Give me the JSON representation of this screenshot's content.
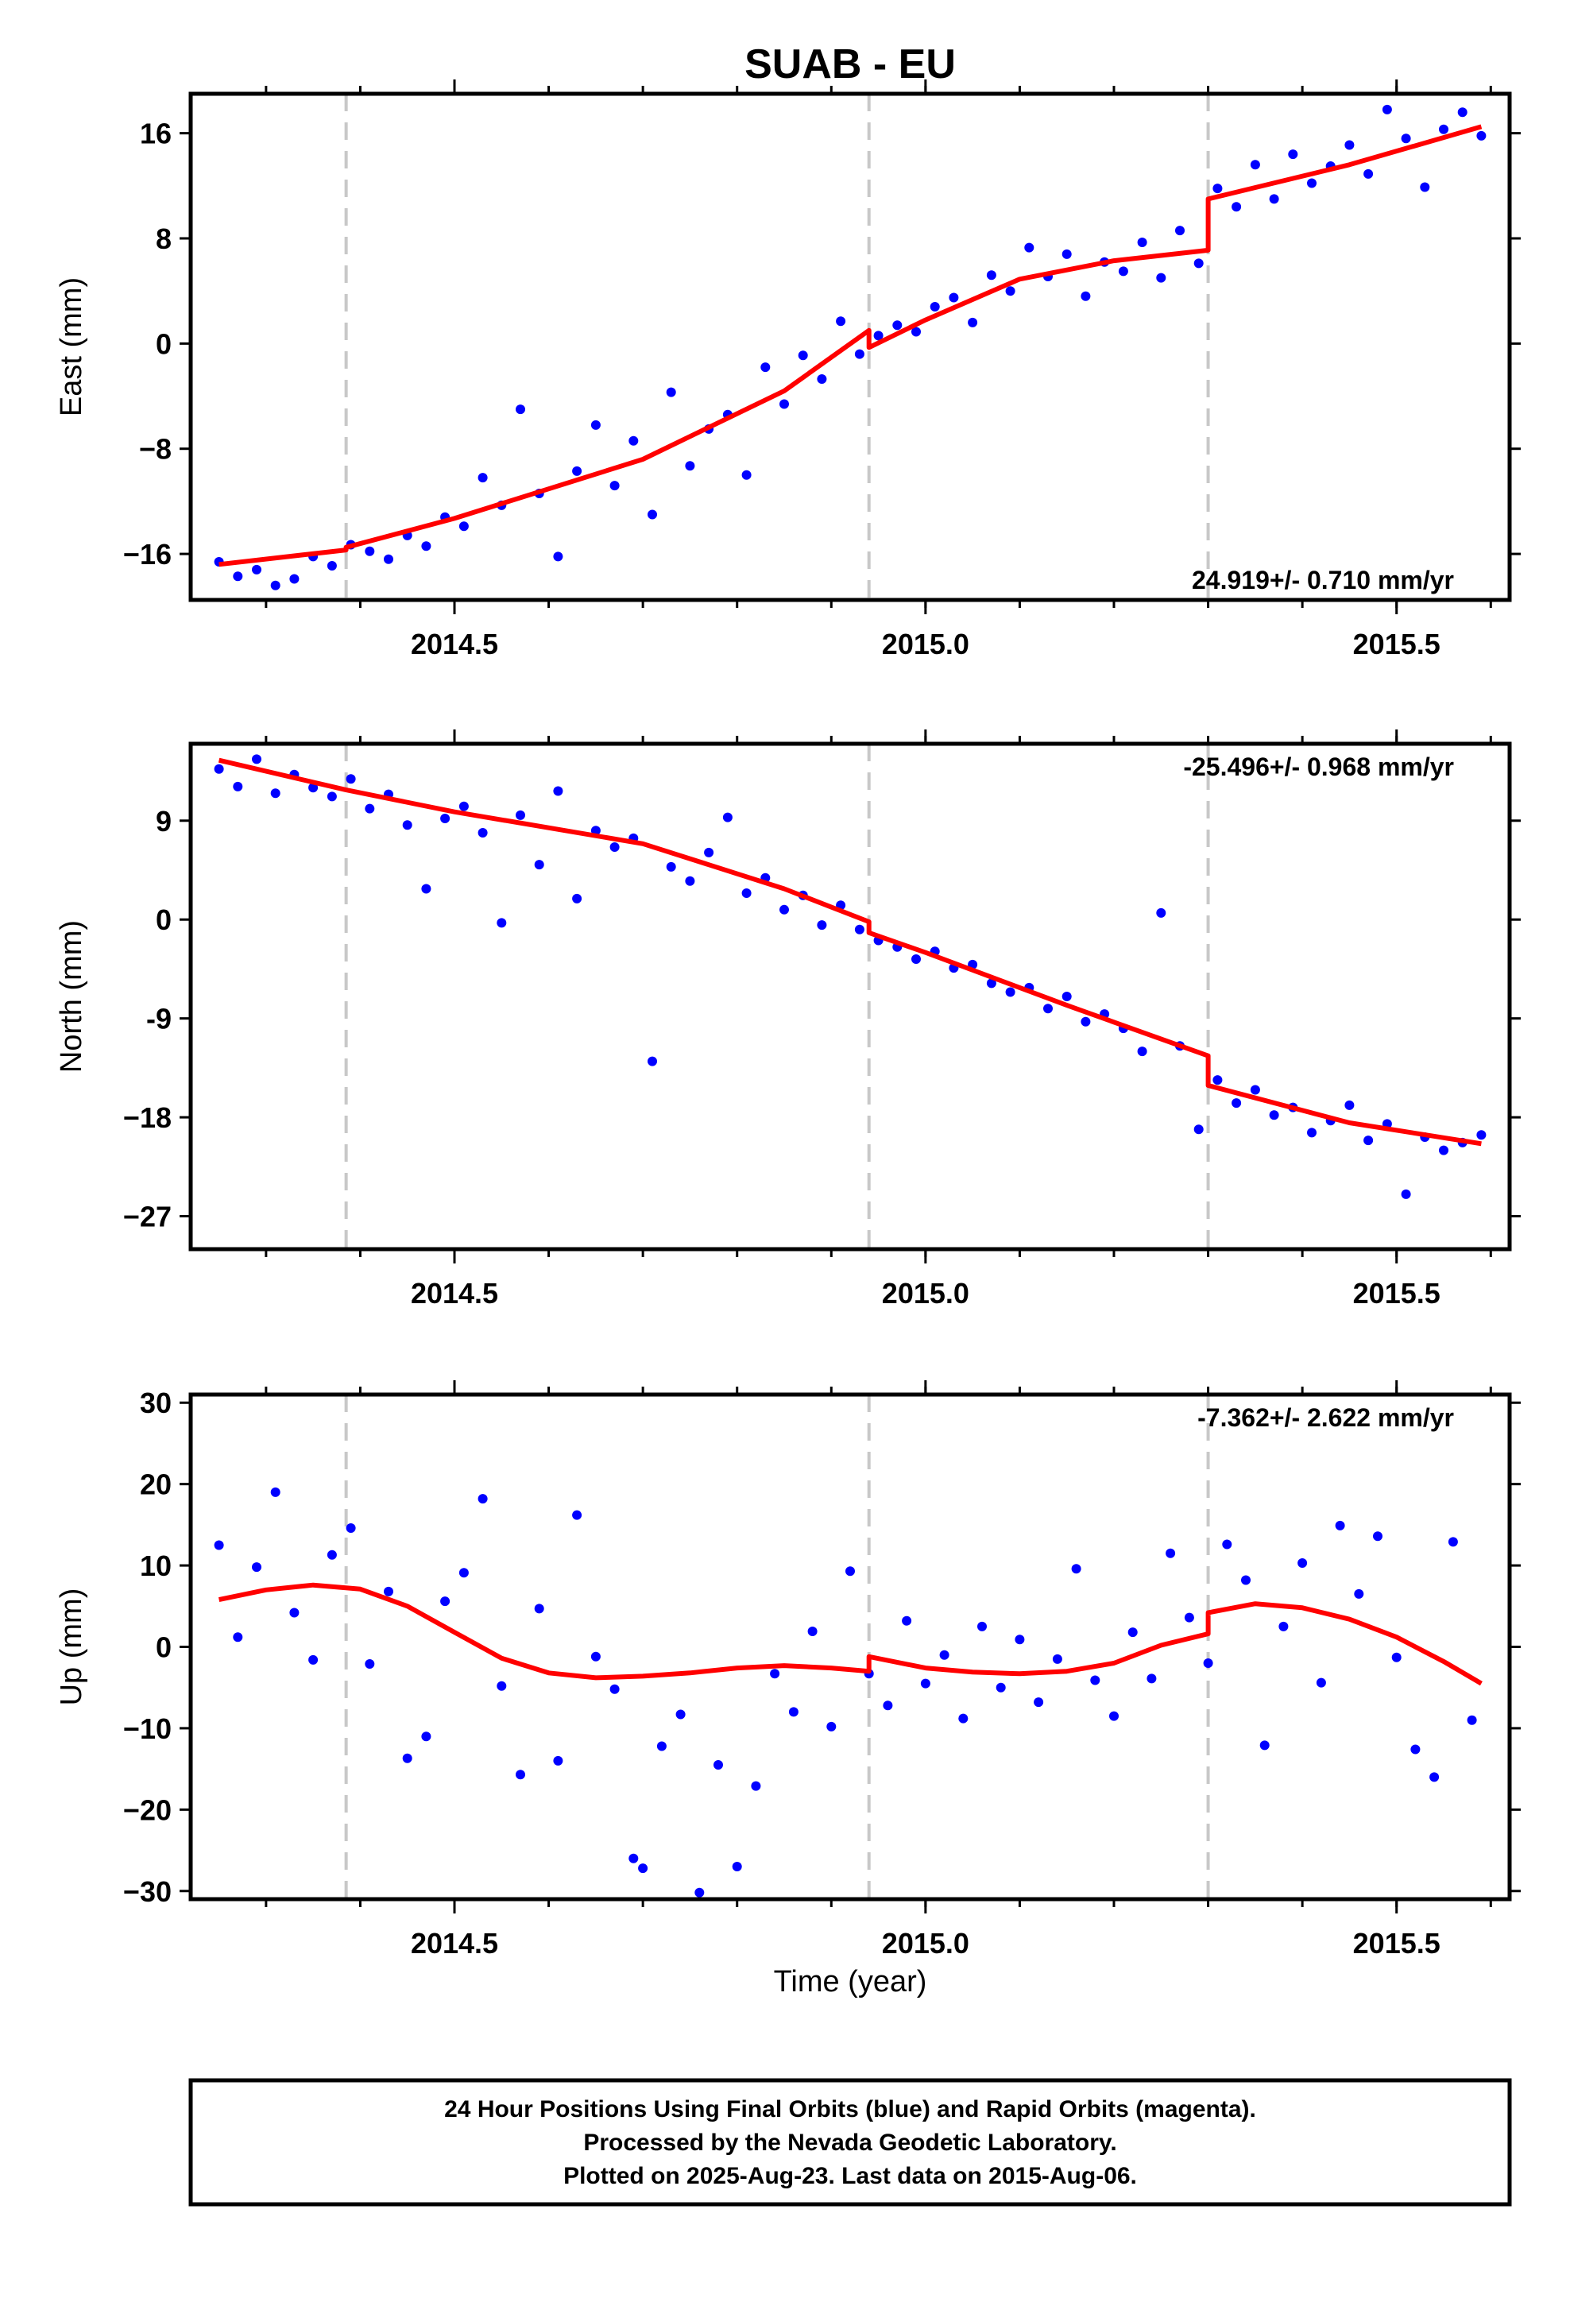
{
  "title": "SUAB - EU",
  "xlabel": "Time (year)",
  "footer": {
    "line1": "24 Hour Positions Using Final Orbits (blue) and Rapid Orbits (magenta).",
    "line2": "Processed by the Nevada Geodetic Laboratory.",
    "line3": "Plotted on 2025-Aug-23. Last data on 2015-Aug-06."
  },
  "colors": {
    "points": "#0000ff",
    "fit": "#ff0000",
    "breaks": "#c8c8c8",
    "frame": "#000000"
  },
  "chart_data": [
    {
      "type": "scatter",
      "ylabel": "East (mm)",
      "rate": "24.919+/- 0.710 mm/yr",
      "rate_position": "bottom-right",
      "xlim": [
        2014.22,
        2015.62
      ],
      "ylim": [
        -19.5,
        19
      ],
      "xticks": [
        2014.5,
        2015.0,
        2015.5
      ],
      "xtick_labels": [
        "2014.5",
        "2015.0",
        "2015.5"
      ],
      "yticks": [
        16,
        8,
        0,
        -8,
        -16
      ],
      "ytick_labels": [
        "16",
        "8",
        "0",
        "−8",
        "−16"
      ],
      "breaks": [
        2014.385,
        2014.94,
        2015.3
      ],
      "fit": [
        [
          2014.25,
          -16.8
        ],
        [
          2014.385,
          -15.7
        ],
        [
          2014.385,
          -15.5
        ],
        [
          2014.5,
          -13.3
        ],
        [
          2014.7,
          -8.8
        ],
        [
          2014.85,
          -3.6
        ],
        [
          2014.94,
          1.0
        ],
        [
          2014.94,
          -0.3
        ],
        [
          2015.0,
          1.8
        ],
        [
          2015.1,
          4.9
        ],
        [
          2015.2,
          6.3
        ],
        [
          2015.3,
          7.1
        ],
        [
          2015.3,
          11.0
        ],
        [
          2015.45,
          13.6
        ],
        [
          2015.59,
          16.5
        ]
      ],
      "points": [
        [
          2014.25,
          -16.6
        ],
        [
          2014.27,
          -17.7
        ],
        [
          2014.29,
          -17.2
        ],
        [
          2014.31,
          -18.4
        ],
        [
          2014.33,
          -17.9
        ],
        [
          2014.35,
          -16.2
        ],
        [
          2014.37,
          -16.9
        ],
        [
          2014.39,
          -15.3
        ],
        [
          2014.41,
          -15.8
        ],
        [
          2014.43,
          -16.4
        ],
        [
          2014.45,
          -14.6
        ],
        [
          2014.47,
          -15.4
        ],
        [
          2014.49,
          -13.2
        ],
        [
          2014.51,
          -13.9
        ],
        [
          2014.53,
          -10.2
        ],
        [
          2014.55,
          -12.3
        ],
        [
          2014.57,
          -5.0
        ],
        [
          2014.59,
          -11.4
        ],
        [
          2014.61,
          -16.2
        ],
        [
          2014.63,
          -9.7
        ],
        [
          2014.65,
          -6.2
        ],
        [
          2014.67,
          -10.8
        ],
        [
          2014.69,
          -7.4
        ],
        [
          2014.71,
          -13.0
        ],
        [
          2014.73,
          -3.7
        ],
        [
          2014.75,
          -9.3
        ],
        [
          2014.77,
          -6.5
        ],
        [
          2014.79,
          -5.4
        ],
        [
          2014.81,
          -10.0
        ],
        [
          2014.83,
          -1.8
        ],
        [
          2014.85,
          -4.6
        ],
        [
          2014.87,
          -0.9
        ],
        [
          2014.89,
          -2.7
        ],
        [
          2014.91,
          1.7
        ],
        [
          2014.93,
          -0.8
        ],
        [
          2014.95,
          0.6
        ],
        [
          2014.97,
          1.4
        ],
        [
          2014.99,
          0.9
        ],
        [
          2015.01,
          2.8
        ],
        [
          2015.03,
          3.5
        ],
        [
          2015.05,
          1.6
        ],
        [
          2015.07,
          5.2
        ],
        [
          2015.09,
          4.0
        ],
        [
          2015.11,
          7.3
        ],
        [
          2015.13,
          5.1
        ],
        [
          2015.15,
          6.8
        ],
        [
          2015.17,
          3.6
        ],
        [
          2015.19,
          6.2
        ],
        [
          2015.21,
          5.5
        ],
        [
          2015.23,
          7.7
        ],
        [
          2015.25,
          5.0
        ],
        [
          2015.27,
          8.6
        ],
        [
          2015.29,
          6.1
        ],
        [
          2015.31,
          11.8
        ],
        [
          2015.33,
          10.4
        ],
        [
          2015.35,
          13.6
        ],
        [
          2015.37,
          11.0
        ],
        [
          2015.39,
          14.4
        ],
        [
          2015.41,
          12.2
        ],
        [
          2015.43,
          13.5
        ],
        [
          2015.45,
          15.1
        ],
        [
          2015.47,
          12.9
        ],
        [
          2015.49,
          17.8
        ],
        [
          2015.51,
          15.6
        ],
        [
          2015.53,
          11.9
        ],
        [
          2015.55,
          16.3
        ],
        [
          2015.57,
          17.6
        ],
        [
          2015.59,
          15.8
        ]
      ]
    },
    {
      "type": "scatter",
      "ylabel": "North (mm)",
      "rate": "-25.496+/- 0.968 mm/yr",
      "rate_position": "top-right",
      "xlim": [
        2014.22,
        2015.62
      ],
      "ylim": [
        -30,
        16
      ],
      "xticks": [
        2014.5,
        2015.0,
        2015.5
      ],
      "xtick_labels": [
        "2014.5",
        "2015.0",
        "2015.5"
      ],
      "yticks": [
        9,
        0,
        -9,
        -18,
        -27
      ],
      "ytick_labels": [
        "9",
        "0",
        "-9",
        "−18",
        "−27"
      ],
      "breaks": [
        2014.385,
        2014.94,
        2015.3
      ],
      "fit": [
        [
          2014.25,
          14.5
        ],
        [
          2014.385,
          11.8
        ],
        [
          2014.5,
          9.8
        ],
        [
          2014.7,
          6.9
        ],
        [
          2014.85,
          2.8
        ],
        [
          2014.94,
          -0.2
        ],
        [
          2014.94,
          -1.2
        ],
        [
          2015.0,
          -3.0
        ],
        [
          2015.15,
          -7.8
        ],
        [
          2015.3,
          -12.4
        ],
        [
          2015.3,
          -15.1
        ],
        [
          2015.45,
          -18.5
        ],
        [
          2015.59,
          -20.4
        ]
      ],
      "points": [
        [
          2014.25,
          13.7
        ],
        [
          2014.27,
          12.1
        ],
        [
          2014.29,
          14.6
        ],
        [
          2014.31,
          11.5
        ],
        [
          2014.33,
          13.2
        ],
        [
          2014.35,
          12.0
        ],
        [
          2014.37,
          11.2
        ],
        [
          2014.39,
          12.8
        ],
        [
          2014.41,
          10.1
        ],
        [
          2014.43,
          11.4
        ],
        [
          2014.45,
          8.6
        ],
        [
          2014.47,
          2.8
        ],
        [
          2014.49,
          9.2
        ],
        [
          2014.51,
          10.3
        ],
        [
          2014.53,
          7.9
        ],
        [
          2014.55,
          -0.3
        ],
        [
          2014.57,
          9.5
        ],
        [
          2014.59,
          5.0
        ],
        [
          2014.61,
          11.7
        ],
        [
          2014.63,
          1.9
        ],
        [
          2014.65,
          8.1
        ],
        [
          2014.67,
          6.6
        ],
        [
          2014.69,
          7.4
        ],
        [
          2014.71,
          -12.9
        ],
        [
          2014.73,
          4.8
        ],
        [
          2014.75,
          3.5
        ],
        [
          2014.77,
          6.1
        ],
        [
          2014.79,
          9.3
        ],
        [
          2014.81,
          2.4
        ],
        [
          2014.83,
          3.8
        ],
        [
          2014.85,
          0.9
        ],
        [
          2014.87,
          2.2
        ],
        [
          2014.89,
          -0.5
        ],
        [
          2014.91,
          1.3
        ],
        [
          2014.93,
          -0.9
        ],
        [
          2014.95,
          -1.9
        ],
        [
          2014.97,
          -2.5
        ],
        [
          2014.99,
          -3.6
        ],
        [
          2015.01,
          -2.9
        ],
        [
          2015.03,
          -4.4
        ],
        [
          2015.05,
          -4.1
        ],
        [
          2015.07,
          -5.8
        ],
        [
          2015.09,
          -6.6
        ],
        [
          2015.11,
          -6.2
        ],
        [
          2015.13,
          -8.1
        ],
        [
          2015.15,
          -7.0
        ],
        [
          2015.17,
          -9.3
        ],
        [
          2015.19,
          -8.6
        ],
        [
          2015.21,
          -9.9
        ],
        [
          2015.23,
          -12.0
        ],
        [
          2015.25,
          0.6
        ],
        [
          2015.27,
          -11.5
        ],
        [
          2015.29,
          -19.1
        ],
        [
          2015.31,
          -14.6
        ],
        [
          2015.33,
          -16.7
        ],
        [
          2015.35,
          -15.5
        ],
        [
          2015.37,
          -17.8
        ],
        [
          2015.39,
          -17.1
        ],
        [
          2015.41,
          -19.4
        ],
        [
          2015.43,
          -18.3
        ],
        [
          2015.45,
          -16.9
        ],
        [
          2015.47,
          -20.1
        ],
        [
          2015.49,
          -18.6
        ],
        [
          2015.51,
          -25.0
        ],
        [
          2015.53,
          -19.8
        ],
        [
          2015.55,
          -21.0
        ],
        [
          2015.57,
          -20.3
        ],
        [
          2015.59,
          -19.6
        ]
      ]
    },
    {
      "type": "scatter",
      "ylabel": "Up (mm)",
      "rate": "-7.362+/- 2.622 mm/yr",
      "rate_position": "top-right",
      "xlim": [
        2014.22,
        2015.62
      ],
      "ylim": [
        -31,
        31
      ],
      "xticks": [
        2014.5,
        2015.0,
        2015.5
      ],
      "xtick_labels": [
        "2014.5",
        "2015.0",
        "2015.5"
      ],
      "yticks": [
        30,
        20,
        10,
        0,
        -10,
        -20,
        -30
      ],
      "ytick_labels": [
        "30",
        "20",
        "10",
        "0",
        "−10",
        "−20",
        "−30"
      ],
      "breaks": [
        2014.385,
        2014.94,
        2015.3
      ],
      "fit": [
        [
          2014.25,
          5.8
        ],
        [
          2014.3,
          7.0
        ],
        [
          2014.35,
          7.6
        ],
        [
          2014.4,
          7.1
        ],
        [
          2014.45,
          5.0
        ],
        [
          2014.5,
          1.8
        ],
        [
          2014.55,
          -1.4
        ],
        [
          2014.6,
          -3.2
        ],
        [
          2014.65,
          -3.8
        ],
        [
          2014.7,
          -3.6
        ],
        [
          2014.75,
          -3.2
        ],
        [
          2014.8,
          -2.6
        ],
        [
          2014.85,
          -2.3
        ],
        [
          2014.9,
          -2.6
        ],
        [
          2014.94,
          -3.0
        ],
        [
          2014.94,
          -1.2
        ],
        [
          2015.0,
          -2.6
        ],
        [
          2015.05,
          -3.1
        ],
        [
          2015.1,
          -3.3
        ],
        [
          2015.15,
          -3.0
        ],
        [
          2015.2,
          -2.0
        ],
        [
          2015.25,
          0.2
        ],
        [
          2015.3,
          1.6
        ],
        [
          2015.3,
          4.2
        ],
        [
          2015.35,
          5.3
        ],
        [
          2015.4,
          4.8
        ],
        [
          2015.45,
          3.4
        ],
        [
          2015.5,
          1.2
        ],
        [
          2015.55,
          -1.8
        ],
        [
          2015.59,
          -4.5
        ]
      ],
      "points": [
        [
          2014.25,
          12.5
        ],
        [
          2014.27,
          1.2
        ],
        [
          2014.29,
          9.8
        ],
        [
          2014.31,
          19.0
        ],
        [
          2014.33,
          4.2
        ],
        [
          2014.35,
          -1.6
        ],
        [
          2014.37,
          11.3
        ],
        [
          2014.39,
          14.6
        ],
        [
          2014.41,
          -2.1
        ],
        [
          2014.43,
          6.8
        ],
        [
          2014.45,
          -13.7
        ],
        [
          2014.47,
          -11.0
        ],
        [
          2014.49,
          5.6
        ],
        [
          2014.51,
          9.1
        ],
        [
          2014.53,
          18.2
        ],
        [
          2014.55,
          -4.8
        ],
        [
          2014.57,
          -15.7
        ],
        [
          2014.59,
          4.7
        ],
        [
          2014.61,
          -14.0
        ],
        [
          2014.63,
          16.2
        ],
        [
          2014.65,
          -1.2
        ],
        [
          2014.67,
          -5.2
        ],
        [
          2014.69,
          -26.0
        ],
        [
          2014.7,
          -27.2
        ],
        [
          2014.72,
          -12.2
        ],
        [
          2014.74,
          -8.3
        ],
        [
          2014.76,
          -30.2
        ],
        [
          2014.78,
          -14.5
        ],
        [
          2014.8,
          -27.0
        ],
        [
          2014.82,
          -17.1
        ],
        [
          2014.84,
          -3.3
        ],
        [
          2014.86,
          -8.0
        ],
        [
          2014.88,
          1.9
        ],
        [
          2014.9,
          -9.8
        ],
        [
          2014.92,
          9.3
        ],
        [
          2014.94,
          -3.3
        ],
        [
          2014.96,
          -7.2
        ],
        [
          2014.98,
          3.2
        ],
        [
          2015.0,
          -4.5
        ],
        [
          2015.02,
          -1.0
        ],
        [
          2015.04,
          -8.8
        ],
        [
          2015.06,
          2.5
        ],
        [
          2015.08,
          -5.0
        ],
        [
          2015.1,
          0.9
        ],
        [
          2015.12,
          -6.8
        ],
        [
          2015.14,
          -1.5
        ],
        [
          2015.16,
          9.6
        ],
        [
          2015.18,
          -4.1
        ],
        [
          2015.2,
          -8.5
        ],
        [
          2015.22,
          1.8
        ],
        [
          2015.24,
          -3.9
        ],
        [
          2015.26,
          11.5
        ],
        [
          2015.28,
          3.6
        ],
        [
          2015.3,
          -2.0
        ],
        [
          2015.32,
          12.6
        ],
        [
          2015.34,
          8.2
        ],
        [
          2015.36,
          -12.1
        ],
        [
          2015.38,
          2.5
        ],
        [
          2015.4,
          10.3
        ],
        [
          2015.42,
          -4.4
        ],
        [
          2015.44,
          14.9
        ],
        [
          2015.46,
          6.5
        ],
        [
          2015.48,
          13.6
        ],
        [
          2015.5,
          -1.3
        ],
        [
          2015.52,
          -12.6
        ],
        [
          2015.54,
          -16.0
        ],
        [
          2015.56,
          12.9
        ],
        [
          2015.58,
          -9.0
        ]
      ]
    }
  ]
}
